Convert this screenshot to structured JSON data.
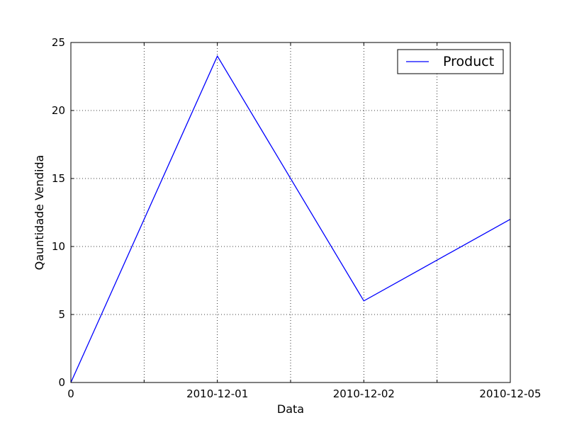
{
  "chart_data": {
    "type": "line",
    "title": "",
    "xlabel": "Data",
    "ylabel": "Qauntidade Vendida",
    "x_tick_labels": [
      "0",
      "2010-12-01",
      "2010-12-02",
      "2010-12-05"
    ],
    "y_tick_labels": [
      "0",
      "5",
      "10",
      "15",
      "20",
      "25"
    ],
    "ylim": [
      0,
      25
    ],
    "x_positions": [
      0,
      2,
      4,
      6
    ],
    "xlim": [
      0,
      6
    ],
    "minor_x_ticks": [
      1,
      3,
      5
    ],
    "grid": true,
    "legend_position": "top-right",
    "series": [
      {
        "name": "Product",
        "color": "#0000ff",
        "x": [
          0,
          2,
          4,
          6
        ],
        "y": [
          0,
          24,
          6,
          12
        ]
      }
    ]
  }
}
